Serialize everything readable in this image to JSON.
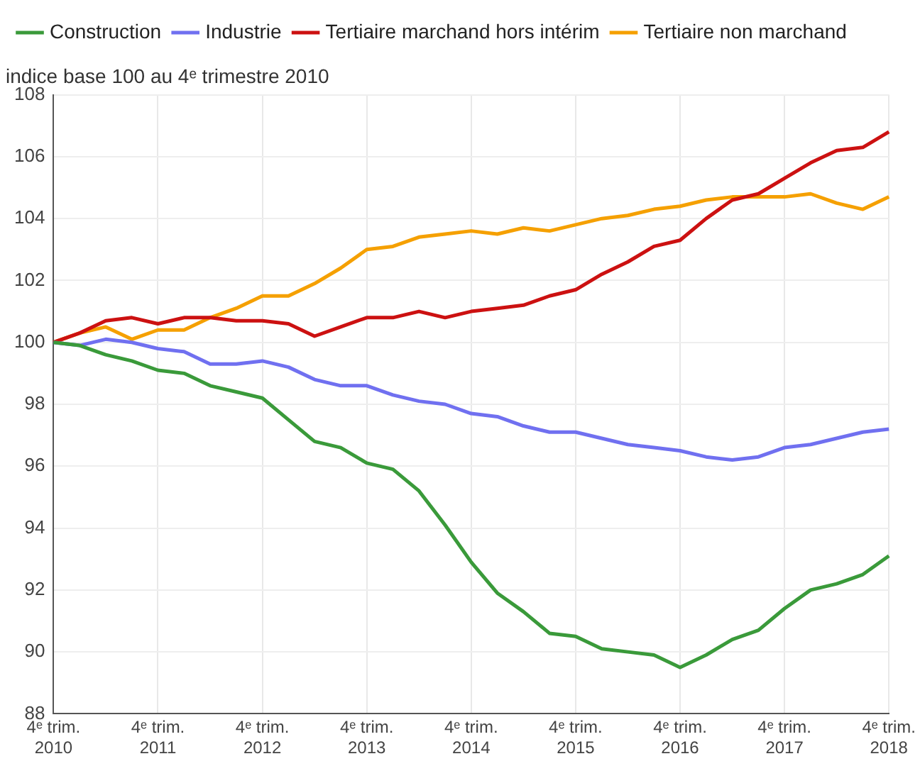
{
  "chart_data": {
    "type": "line",
    "ylabel": "indice base 100 au 4ᵉ trimestre 2010",
    "categories": [
      "4ᵉ trim. 2010",
      null,
      null,
      null,
      "4ᵉ trim. 2011",
      null,
      null,
      null,
      "4ᵉ trim. 2012",
      null,
      null,
      null,
      "4ᵉ trim. 2013",
      null,
      null,
      null,
      "4ᵉ trim. 2014",
      null,
      null,
      null,
      "4ᵉ trim. 2015",
      null,
      null,
      null,
      "4ᵉ trim. 2016",
      null,
      null,
      null,
      "4ᵉ trim. 2017",
      null,
      null,
      null,
      "4ᵉ trim. 2018"
    ],
    "series": [
      {
        "name": "Construction",
        "color": "#3a9a3a",
        "values": [
          100,
          99.9,
          99.6,
          99.4,
          99.1,
          99.0,
          98.6,
          98.4,
          98.2,
          97.5,
          96.8,
          96.6,
          96.1,
          95.9,
          95.2,
          94.1,
          92.9,
          91.9,
          91.3,
          90.6,
          90.5,
          90.1,
          90.0,
          89.9,
          89.5,
          89.9,
          90.4,
          90.7,
          91.4,
          92.0,
          92.2,
          92.5,
          93.1
        ]
      },
      {
        "name": "Industrie",
        "color": "#7070f0",
        "values": [
          100,
          99.9,
          100.1,
          100.0,
          99.8,
          99.7,
          99.3,
          99.3,
          99.4,
          99.2,
          98.8,
          98.6,
          98.6,
          98.3,
          98.1,
          98.0,
          97.7,
          97.6,
          97.3,
          97.1,
          97.1,
          96.9,
          96.7,
          96.6,
          96.5,
          96.3,
          96.2,
          96.3,
          96.6,
          96.7,
          96.9,
          97.1,
          97.2
        ]
      },
      {
        "name": "Tertiaire marchand hors intérim",
        "color": "#cc1111",
        "values": [
          100,
          100.3,
          100.7,
          100.8,
          100.6,
          100.8,
          100.8,
          100.7,
          100.7,
          100.6,
          100.2,
          100.5,
          100.8,
          100.8,
          101.0,
          100.8,
          101.0,
          101.1,
          101.2,
          101.5,
          101.7,
          102.2,
          102.6,
          103.1,
          103.3,
          104.0,
          104.6,
          104.8,
          105.3,
          105.8,
          106.2,
          106.3,
          106.8
        ]
      },
      {
        "name": "Tertiaire non marchand",
        "color": "#f5a000",
        "values": [
          100,
          100.3,
          100.5,
          100.1,
          100.4,
          100.4,
          100.8,
          101.1,
          101.5,
          101.5,
          101.9,
          102.4,
          103.0,
          103.1,
          103.4,
          103.5,
          103.6,
          103.5,
          103.7,
          103.6,
          103.8,
          104.0,
          104.1,
          104.3,
          104.4,
          104.6,
          104.7,
          104.7,
          104.7,
          104.8,
          104.5,
          104.3,
          104.7
        ]
      }
    ],
    "ylim": [
      88,
      108
    ],
    "yticks": [
      88,
      90,
      92,
      94,
      96,
      98,
      100,
      102,
      104,
      106,
      108
    ],
    "grid": true,
    "legend": "top left",
    "marker": "none",
    "line_style": "solid"
  }
}
